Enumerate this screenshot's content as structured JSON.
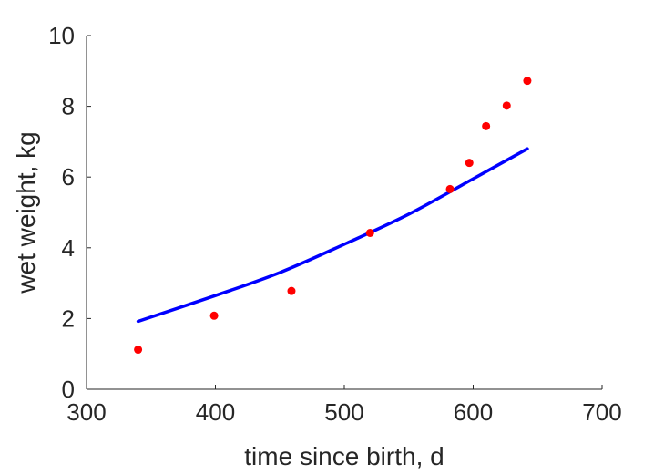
{
  "chart_data": {
    "type": "scatter",
    "title": "",
    "xlabel": "time since birth, d",
    "ylabel": "wet weight, kg",
    "xlim": [
      300,
      700
    ],
    "ylim": [
      0,
      10
    ],
    "xticks": [
      "300",
      "400",
      "500",
      "600",
      "700"
    ],
    "yticks": [
      "0",
      "2",
      "4",
      "6",
      "8",
      "10"
    ],
    "grid": false,
    "legend": "none",
    "series": [
      {
        "kind": "points",
        "color": "#ff0000",
        "x": [
          340,
          399,
          459,
          520,
          582,
          597,
          610,
          626,
          642
        ],
        "y": [
          1.12,
          2.08,
          2.78,
          4.42,
          5.66,
          6.4,
          7.44,
          8.02,
          8.72
        ]
      },
      {
        "kind": "line",
        "color": "#0000ff",
        "x": [
          340,
          400,
          450,
          500,
          550,
          600,
          642
        ],
        "y": [
          1.92,
          2.65,
          3.3,
          4.1,
          4.95,
          5.95,
          6.8
        ]
      }
    ]
  }
}
